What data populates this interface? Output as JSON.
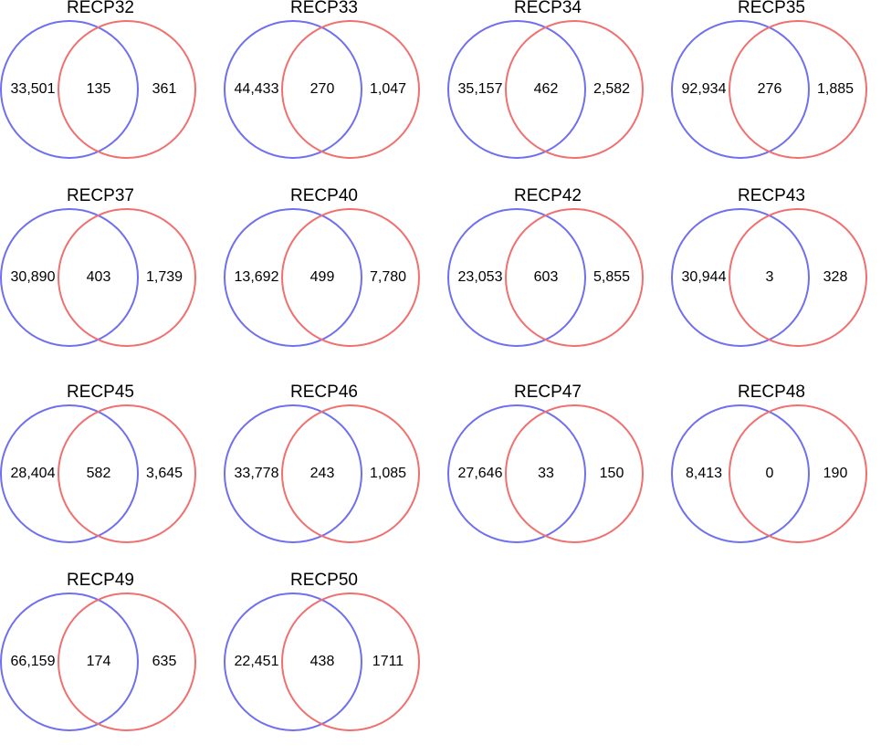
{
  "colors": {
    "left_circle": "#6f6ff0",
    "right_circle": "#f07070"
  },
  "diagrams": [
    {
      "title": "RECP32",
      "left": "33,501",
      "overlap": "135",
      "right": "361"
    },
    {
      "title": "RECP33",
      "left": "44,433",
      "overlap": "270",
      "right": "1,047"
    },
    {
      "title": "RECP34",
      "left": "35,157",
      "overlap": "462",
      "right": "2,582"
    },
    {
      "title": "RECP35",
      "left": "92,934",
      "overlap": "276",
      "right": "1,885"
    },
    {
      "title": "RECP37",
      "left": "30,890",
      "overlap": "403",
      "right": "1,739"
    },
    {
      "title": "RECP40",
      "left": "13,692",
      "overlap": "499",
      "right": "7,780"
    },
    {
      "title": "RECP42",
      "left": "23,053",
      "overlap": "603",
      "right": "5,855"
    },
    {
      "title": "RECP43",
      "left": "30,944",
      "overlap": "3",
      "right": "328"
    },
    {
      "title": "RECP45",
      "left": "28,404",
      "overlap": "582",
      "right": "3,645"
    },
    {
      "title": "RECP46",
      "left": "33,778",
      "overlap": "243",
      "right": "1,085"
    },
    {
      "title": "RECP47",
      "left": "27,646",
      "overlap": "33",
      "right": "150"
    },
    {
      "title": "RECP48",
      "left": "8,413",
      "overlap": "0",
      "right": "190"
    },
    {
      "title": "RECP49",
      "left": "66,159",
      "overlap": "174",
      "right": "635"
    },
    {
      "title": "RECP50",
      "left": "22,451",
      "overlap": "438",
      "right": "1711"
    }
  ]
}
